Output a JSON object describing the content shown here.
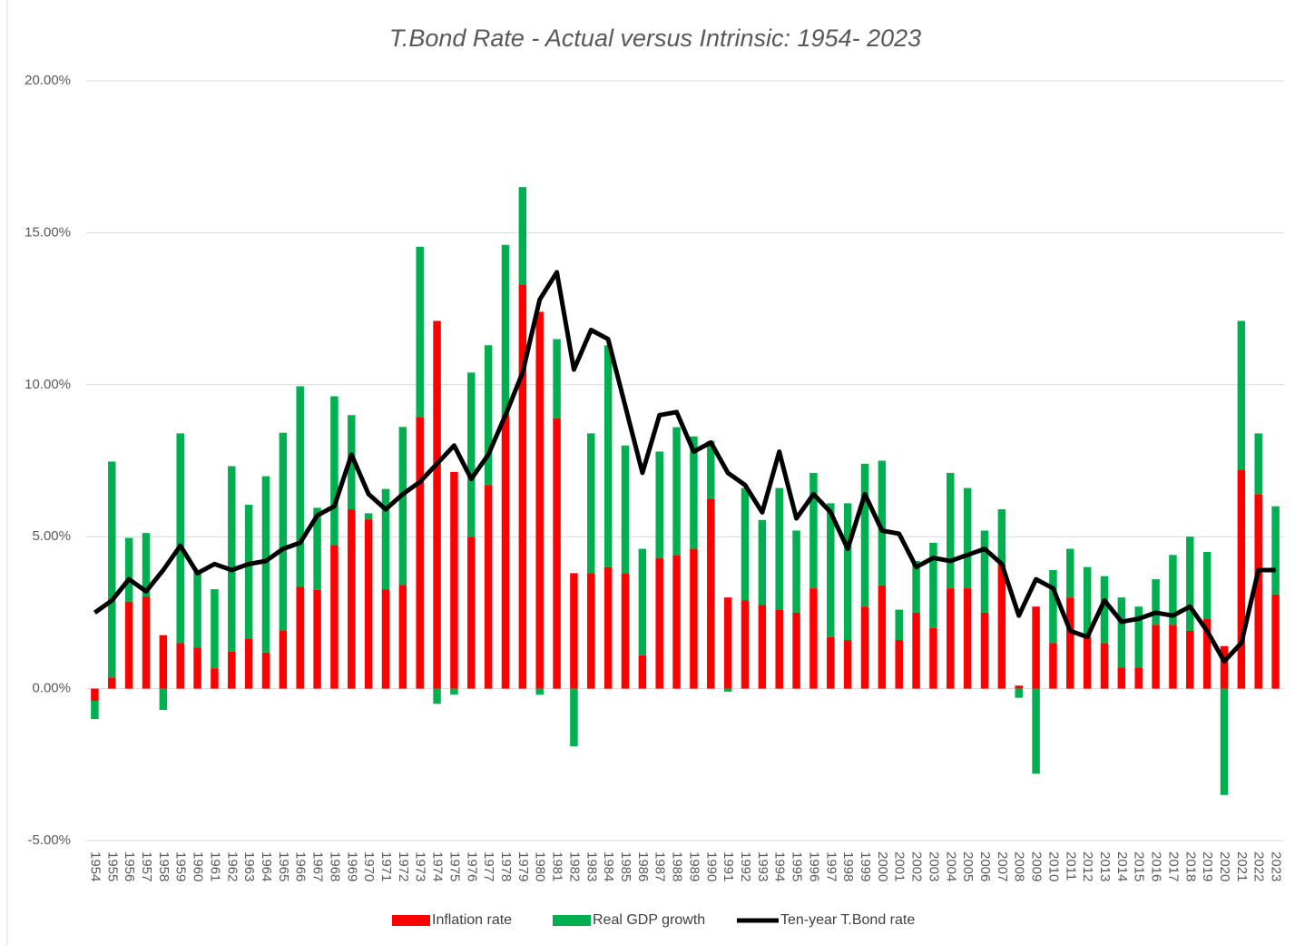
{
  "chart_data": {
    "type": "bar-line",
    "title": "T.Bond Rate - Actual versus Intrinsic: 1954- 2023",
    "categories": [
      "1954",
      "1955",
      "1956",
      "1957",
      "1958",
      "1959",
      "1960",
      "1961",
      "1962",
      "1963",
      "1964",
      "1965",
      "1966",
      "1967",
      "1968",
      "1969",
      "1970",
      "1971",
      "1972",
      "1973",
      "1974",
      "1975",
      "1976",
      "1977",
      "1978",
      "1979",
      "1980",
      "1981",
      "1982",
      "1983",
      "1984",
      "1985",
      "1986",
      "1987",
      "1988",
      "1989",
      "1990",
      "1991",
      "1992",
      "1993",
      "1994",
      "1995",
      "1996",
      "1997",
      "1998",
      "1999",
      "2000",
      "2001",
      "2002",
      "2003",
      "2004",
      "2005",
      "2006",
      "2007",
      "2008",
      "2009",
      "2010",
      "2011",
      "2012",
      "2013",
      "2014",
      "2015",
      "2016",
      "2017",
      "2018",
      "2019",
      "2020",
      "2021",
      "2022",
      "2023"
    ],
    "series": [
      {
        "name": "Inflation rate",
        "kind": "bar",
        "color": "#ff0000",
        "values": [
          -0.4,
          0.37,
          2.86,
          3.02,
          1.76,
          1.5,
          1.35,
          0.67,
          1.22,
          1.65,
          1.19,
          1.92,
          3.35,
          3.25,
          4.72,
          5.9,
          5.57,
          3.27,
          3.41,
          8.94,
          12.1,
          7.13,
          5.0,
          6.7,
          9.0,
          13.3,
          12.4,
          8.9,
          3.8,
          3.8,
          4.0,
          3.8,
          1.1,
          4.3,
          4.4,
          4.6,
          6.25,
          3.0,
          2.9,
          2.75,
          2.6,
          2.5,
          3.3,
          1.7,
          1.6,
          2.7,
          3.4,
          1.6,
          2.5,
          2.0,
          3.3,
          3.3,
          2.5,
          4.1,
          0.1,
          2.7,
          1.5,
          3.0,
          1.7,
          1.5,
          0.7,
          0.7,
          2.1,
          2.1,
          1.9,
          2.3,
          1.4,
          7.2,
          6.4,
          3.1
        ]
      },
      {
        "name": "Real GDP growth",
        "kind": "bar",
        "color": "#00b050",
        "values": [
          -0.6,
          7.1,
          2.1,
          2.1,
          -0.7,
          6.9,
          2.5,
          2.6,
          6.1,
          4.4,
          5.8,
          6.5,
          6.6,
          2.7,
          4.9,
          3.1,
          0.2,
          3.3,
          5.2,
          5.6,
          -0.5,
          -0.2,
          5.4,
          4.6,
          5.6,
          3.2,
          -0.2,
          2.6,
          -1.9,
          4.6,
          7.3,
          4.2,
          3.5,
          3.5,
          4.2,
          3.7,
          1.9,
          -0.1,
          3.7,
          2.8,
          4.0,
          2.7,
          3.8,
          4.4,
          4.5,
          4.7,
          4.1,
          1.0,
          1.7,
          2.8,
          3.8,
          3.3,
          2.7,
          1.8,
          -0.3,
          -2.8,
          2.4,
          1.6,
          2.3,
          2.2,
          2.3,
          2.0,
          1.5,
          2.3,
          3.1,
          2.2,
          -3.5,
          4.9,
          2.0,
          2.9
        ]
      },
      {
        "name": "Ten-year T.Bond rate",
        "kind": "line",
        "color": "#000000",
        "values": [
          2.5,
          2.9,
          3.6,
          3.2,
          3.9,
          4.7,
          3.8,
          4.1,
          3.9,
          4.1,
          4.2,
          4.6,
          4.8,
          5.7,
          6.0,
          7.7,
          6.4,
          5.9,
          6.4,
          6.8,
          7.4,
          8.0,
          6.9,
          7.7,
          9.0,
          10.4,
          12.8,
          13.7,
          10.5,
          11.8,
          11.5,
          9.3,
          7.1,
          9.0,
          9.1,
          7.8,
          8.1,
          7.1,
          6.7,
          5.8,
          7.8,
          5.6,
          6.4,
          5.8,
          4.6,
          6.4,
          5.2,
          5.1,
          4.0,
          4.3,
          4.2,
          4.4,
          4.6,
          4.1,
          2.4,
          3.6,
          3.3,
          1.9,
          1.7,
          2.9,
          2.2,
          2.3,
          2.5,
          2.4,
          2.7,
          1.9,
          0.9,
          1.5,
          3.9,
          3.9
        ]
      }
    ],
    "ylim": [
      -5,
      20
    ],
    "yticks": [
      {
        "value": -5,
        "label": "-5.00%"
      },
      {
        "value": 0,
        "label": "0.00%"
      },
      {
        "value": 5,
        "label": "5.00%"
      },
      {
        "value": 10,
        "label": "10.00%"
      },
      {
        "value": 15,
        "label": "15.00%"
      },
      {
        "value": 20,
        "label": "20.00%"
      }
    ],
    "grid": true,
    "legend": "bottom"
  }
}
